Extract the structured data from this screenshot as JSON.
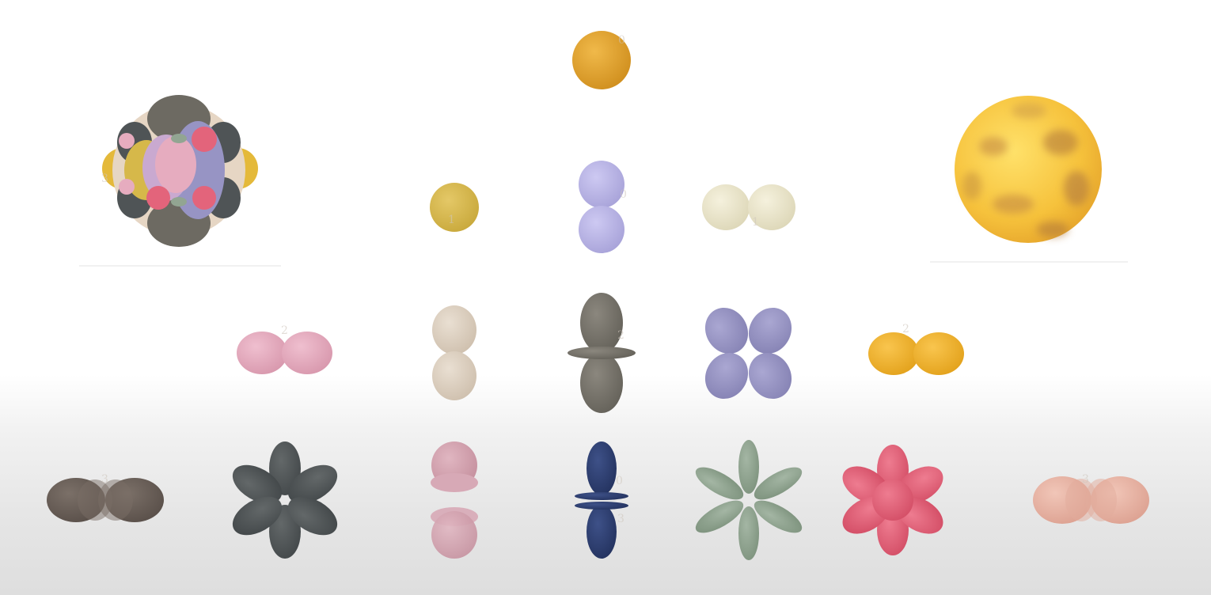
{
  "scene": {
    "background_top": "#ffffff",
    "background_bottom": "#dedede"
  },
  "orbitals": {
    "s0": {
      "name": "s-orbital-top",
      "color": "#e0a12b"
    },
    "p_left": {
      "name": "p-orbital-small-sphere",
      "color": "#d6b84a"
    },
    "p_mid": {
      "name": "p-orbital-vertical",
      "color": "#bbb6e6"
    },
    "p_right": {
      "name": "p-orbital-horizontal",
      "color": "#ebe6cc"
    },
    "d1": {
      "name": "d-orbital-horizontal-pink",
      "color": "#e6acbf"
    },
    "d2": {
      "name": "d-orbital-vertical-beige",
      "color": "#ddd0c1"
    },
    "d3": {
      "name": "d-orbital-dz2",
      "color": "#77736a"
    },
    "d4": {
      "name": "d-orbital-clover",
      "color": "#9996c4"
    },
    "d5": {
      "name": "d-orbital-horizontal-gold",
      "color": "#f2b32a"
    },
    "f1": {
      "name": "f-orbital-brown",
      "color": "#6a5f58"
    },
    "f2": {
      "name": "f-orbital-dark-six",
      "color": "#53585a"
    },
    "f3": {
      "name": "f-orbital-rose-stack",
      "color": "#d4a4b1"
    },
    "f4": {
      "name": "f-orbital-navy",
      "color": "#2e3f70"
    },
    "f5": {
      "name": "f-orbital-sage",
      "color": "#92a592"
    },
    "f6": {
      "name": "f-orbital-coral",
      "color": "#e3647b"
    },
    "f7": {
      "name": "f-orbital-peach",
      "color": "#e8b5a5"
    },
    "cluster": {
      "name": "combined-orbitals-cluster"
    },
    "glow": {
      "name": "electron-cloud-sphere",
      "color": "#f5c640"
    }
  },
  "labels": [
    "0",
    "0",
    "1",
    "1",
    "2",
    "2",
    "2",
    "3",
    "3",
    "3",
    "0",
    "3"
  ]
}
